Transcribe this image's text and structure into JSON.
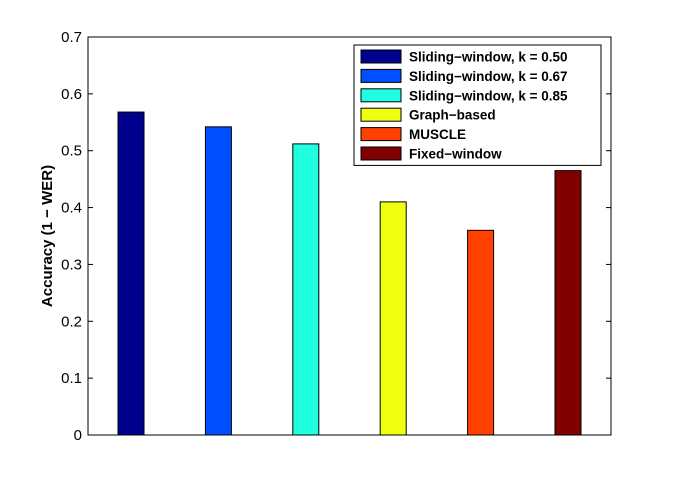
{
  "chart_data": {
    "type": "bar",
    "ylabel": "Accuracy (1 − WER)",
    "ylim": [
      0,
      0.7
    ],
    "yticks": [
      0,
      0.1,
      0.2,
      0.3,
      0.4,
      0.5,
      0.6,
      0.7
    ],
    "ytick_labels": [
      "0",
      "0.1",
      "0.2",
      "0.3",
      "0.4",
      "0.5",
      "0.6",
      "0.7"
    ],
    "grid": false,
    "legend_position": "top-right",
    "series": [
      {
        "name": "Sliding−window, k = 0.50",
        "value": 0.568,
        "color": "#00008f"
      },
      {
        "name": "Sliding−window, k = 0.67",
        "value": 0.542,
        "color": "#0050ff"
      },
      {
        "name": "Sliding−window, k = 0.85",
        "value": 0.512,
        "color": "#20ffdf"
      },
      {
        "name": "Graph−based",
        "value": 0.41,
        "color": "#efff10"
      },
      {
        "name": "MUSCLE",
        "value": 0.36,
        "color": "#ff4000"
      },
      {
        "name": "Fixed−window",
        "value": 0.465,
        "color": "#800000"
      }
    ]
  }
}
